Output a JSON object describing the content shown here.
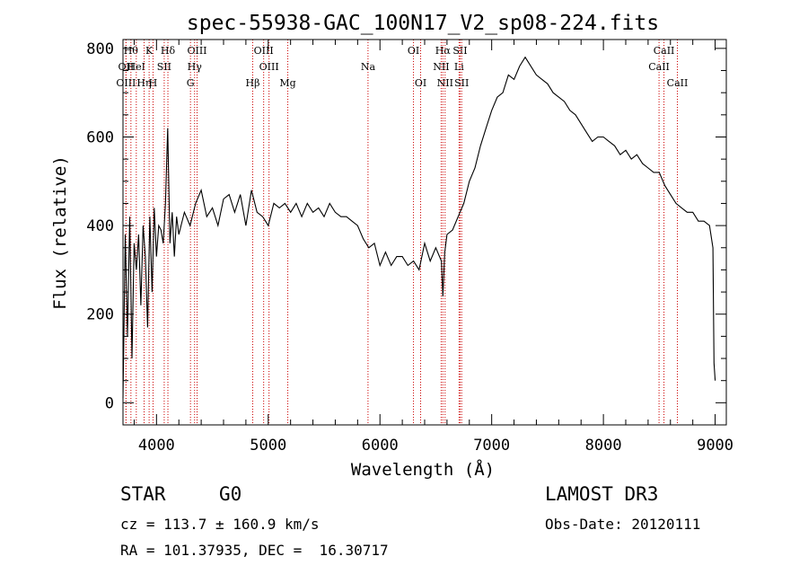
{
  "chart_data": {
    "type": "line",
    "title": "spec-55938-GAC_100N17_V2_sp08-224.fits",
    "xlabel": "Wavelength (Å)",
    "ylabel": "Flux (relative)",
    "xlim": [
      3700,
      9100
    ],
    "ylim": [
      -50,
      820
    ],
    "xticks": [
      4000,
      5000,
      6000,
      7000,
      8000,
      9000
    ],
    "yticks": [
      0,
      200,
      400,
      600,
      800
    ],
    "xtick_labels": [
      "4000",
      "5000",
      "6000",
      "7000",
      "8000",
      "9000"
    ],
    "ytick_labels": [
      "0",
      "200",
      "400",
      "600",
      "800"
    ],
    "series": [
      {
        "name": "flux",
        "x": [
          3700,
          3720,
          3740,
          3760,
          3780,
          3800,
          3820,
          3840,
          3860,
          3880,
          3900,
          3920,
          3940,
          3960,
          3980,
          4000,
          4020,
          4040,
          4060,
          4080,
          4100,
          4120,
          4140,
          4160,
          4180,
          4200,
          4250,
          4300,
          4350,
          4400,
          4450,
          4500,
          4550,
          4600,
          4650,
          4700,
          4750,
          4800,
          4850,
          4900,
          4950,
          5000,
          5050,
          5100,
          5150,
          5200,
          5250,
          5300,
          5350,
          5400,
          5450,
          5500,
          5550,
          5600,
          5650,
          5700,
          5750,
          5800,
          5850,
          5900,
          5950,
          6000,
          6050,
          6100,
          6150,
          6200,
          6250,
          6300,
          6350,
          6400,
          6450,
          6500,
          6550,
          6563,
          6580,
          6600,
          6650,
          6700,
          6750,
          6800,
          6850,
          6900,
          6950,
          7000,
          7050,
          7100,
          7150,
          7200,
          7250,
          7300,
          7350,
          7400,
          7450,
          7500,
          7550,
          7600,
          7650,
          7700,
          7750,
          7800,
          7850,
          7900,
          7950,
          8000,
          8050,
          8100,
          8150,
          8200,
          8250,
          8300,
          8350,
          8400,
          8450,
          8500,
          8550,
          8600,
          8650,
          8700,
          8750,
          8800,
          8850,
          8900,
          8950,
          8980,
          8990,
          9000
        ],
        "y": [
          10,
          380,
          150,
          420,
          100,
          360,
          300,
          380,
          220,
          400,
          330,
          170,
          420,
          250,
          440,
          330,
          400,
          390,
          360,
          450,
          620,
          360,
          430,
          330,
          420,
          380,
          430,
          400,
          450,
          480,
          420,
          440,
          400,
          460,
          470,
          430,
          470,
          400,
          480,
          430,
          420,
          400,
          450,
          440,
          450,
          430,
          450,
          420,
          450,
          430,
          440,
          420,
          450,
          430,
          420,
          420,
          410,
          400,
          370,
          350,
          360,
          310,
          340,
          310,
          330,
          330,
          310,
          320,
          300,
          360,
          320,
          350,
          320,
          240,
          340,
          380,
          390,
          420,
          450,
          500,
          530,
          580,
          620,
          660,
          690,
          700,
          740,
          730,
          760,
          780,
          760,
          740,
          730,
          720,
          700,
          690,
          680,
          660,
          650,
          630,
          610,
          590,
          600,
          600,
          590,
          580,
          560,
          570,
          550,
          560,
          540,
          530,
          520,
          520,
          490,
          470,
          450,
          440,
          430,
          430,
          410,
          410,
          400,
          350,
          90,
          50
        ]
      }
    ],
    "spectral_lines": [
      {
        "label": "OII",
        "wavelength": 3727,
        "row": 1
      },
      {
        "label": "OIII",
        "wavelength": 3727,
        "row": 2
      },
      {
        "label": "Hθ",
        "wavelength": 3771,
        "row": 0
      },
      {
        "label": "HeI",
        "wavelength": 3819,
        "row": 1
      },
      {
        "label": "K",
        "wavelength": 3934,
        "row": 0
      },
      {
        "label": "Hη",
        "wavelength": 3889,
        "row": 2
      },
      {
        "label": "H",
        "wavelength": 3969,
        "row": 2
      },
      {
        "label": "SII",
        "wavelength": 4069,
        "row": 1
      },
      {
        "label": "Hδ",
        "wavelength": 4102,
        "row": 0
      },
      {
        "label": "OIII",
        "wavelength": 4363,
        "row": 0
      },
      {
        "label": "Hγ",
        "wavelength": 4341,
        "row": 1
      },
      {
        "label": "G",
        "wavelength": 4304,
        "row": 2
      },
      {
        "label": "Hβ",
        "wavelength": 4861,
        "row": 2
      },
      {
        "label": "OIII",
        "wavelength": 4959,
        "row": 0
      },
      {
        "label": "OIII",
        "wavelength": 5007,
        "row": 1
      },
      {
        "label": "Mg",
        "wavelength": 5175,
        "row": 2
      },
      {
        "label": "Na",
        "wavelength": 5893,
        "row": 1
      },
      {
        "label": "OI",
        "wavelength": 6300,
        "row": 0
      },
      {
        "label": "OI",
        "wavelength": 6364,
        "row": 2
      },
      {
        "label": "Hα",
        "wavelength": 6563,
        "row": 0
      },
      {
        "label": "NII",
        "wavelength": 6548,
        "row": 1
      },
      {
        "label": "NII",
        "wavelength": 6583,
        "row": 2
      },
      {
        "label": "SII",
        "wavelength": 6717,
        "row": 0
      },
      {
        "label": "Li",
        "wavelength": 6708,
        "row": 1
      },
      {
        "label": "SII",
        "wavelength": 6731,
        "row": 2
      },
      {
        "label": "CaII",
        "wavelength": 8542,
        "row": 0
      },
      {
        "label": "CaII",
        "wavelength": 8498,
        "row": 1
      },
      {
        "label": "CaII",
        "wavelength": 8662,
        "row": 2
      }
    ],
    "line_color": "#cc0000"
  },
  "info": {
    "class_label": "STAR",
    "subclass": "G0",
    "survey": "LAMOST DR3",
    "cz": "cz = 113.7 ± 160.9 km/s",
    "obs_date": "Obs-Date: 20120111",
    "coords": "RA = 101.37935, DEC =  16.30717"
  }
}
